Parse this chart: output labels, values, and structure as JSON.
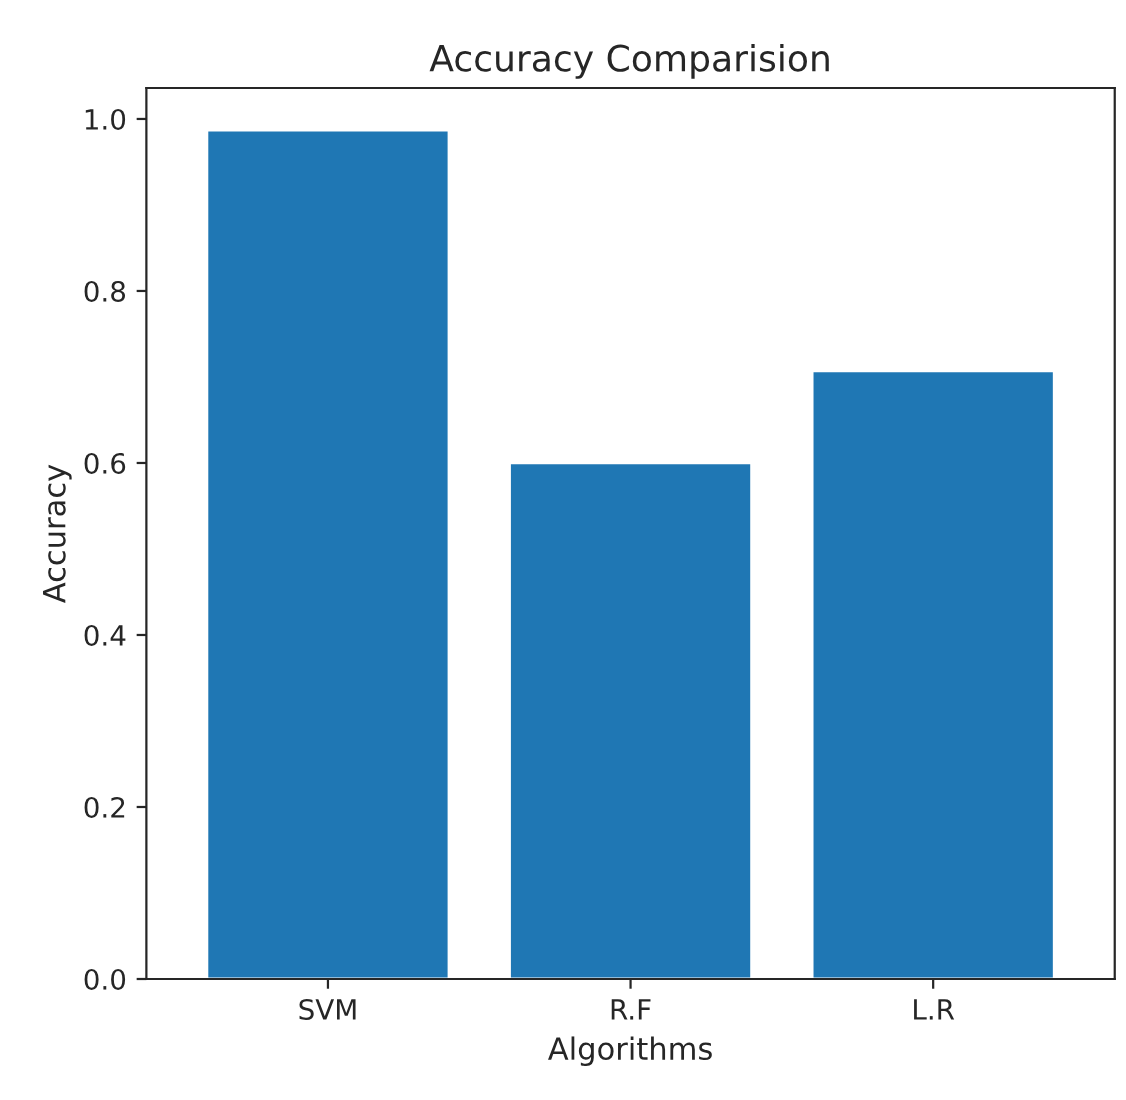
{
  "chart_data": {
    "type": "bar",
    "title": "Accuracy Comparision",
    "xlabel": "Algorithms",
    "ylabel": "Accuracy",
    "categories": [
      "SVM",
      "R.F",
      "L.R"
    ],
    "values": [
      0.987,
      0.6,
      0.707
    ],
    "color": "#1f77b4",
    "ylim": [
      0,
      1.036
    ],
    "yticks": [
      {
        "value": 0,
        "label": "0.0"
      },
      {
        "value": 0.2,
        "label": "0.2"
      },
      {
        "value": 0.4,
        "label": "0.4"
      },
      {
        "value": 0.6,
        "label": "0.6"
      },
      {
        "value": 0.8,
        "label": "0.8"
      },
      {
        "value": 1.0,
        "label": "1.0"
      }
    ],
    "grid": false
  }
}
